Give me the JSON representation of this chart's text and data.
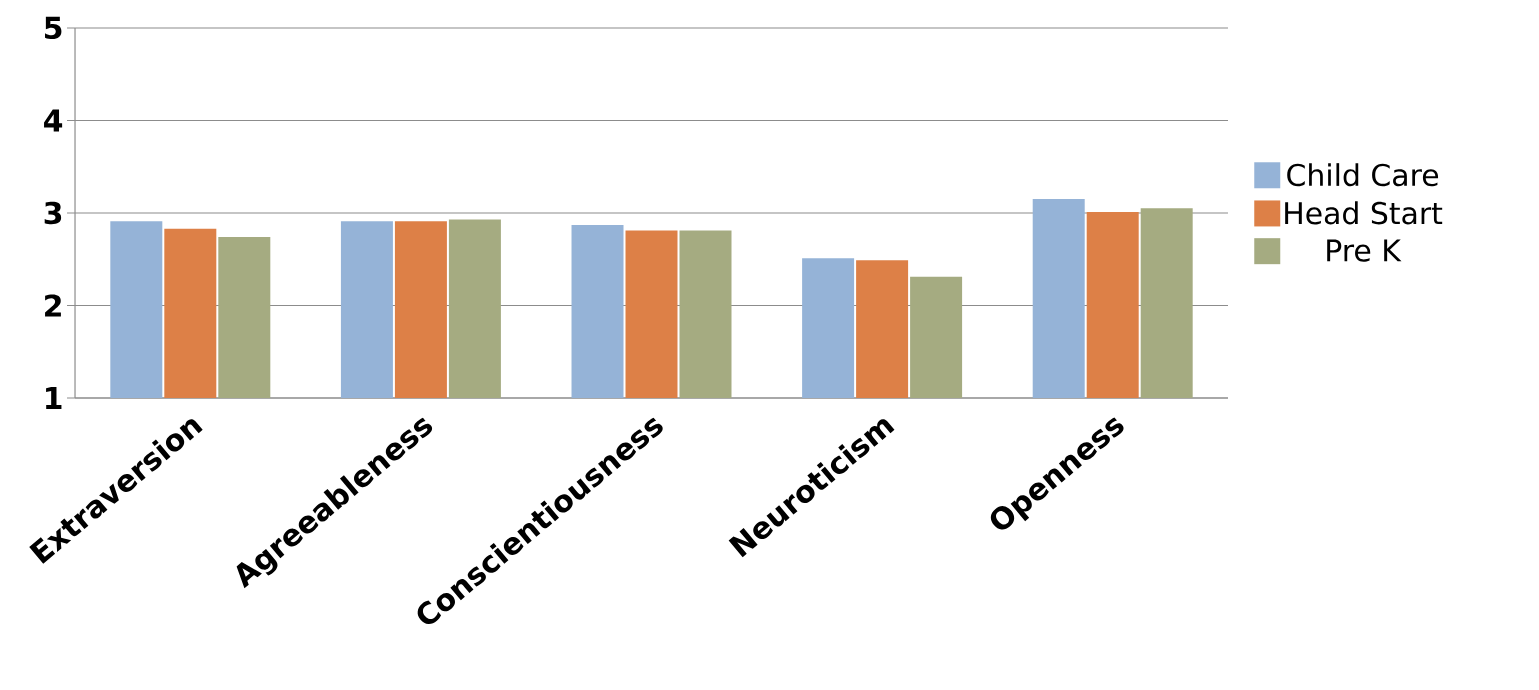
{
  "chart_data": {
    "type": "bar",
    "categories": [
      "Extraversion",
      "Agreeableness",
      "Conscientiousness",
      "Neuroticism",
      "Openness"
    ],
    "series": [
      {
        "name": "Child Care",
        "color": "#95b3d7",
        "values": [
          2.91,
          2.91,
          2.87,
          2.51,
          3.15
        ]
      },
      {
        "name": "Head Start",
        "color": "#dd8047",
        "values": [
          2.83,
          2.91,
          2.81,
          2.49,
          3.01
        ]
      },
      {
        "name": "Pre K",
        "color": "#a5ab81",
        "values": [
          2.74,
          2.93,
          2.81,
          2.31,
          3.05
        ]
      }
    ],
    "ylim": [
      1,
      5
    ],
    "yticks": [
      1,
      2,
      3,
      4,
      5
    ],
    "grid": "y",
    "legend": "right"
  }
}
